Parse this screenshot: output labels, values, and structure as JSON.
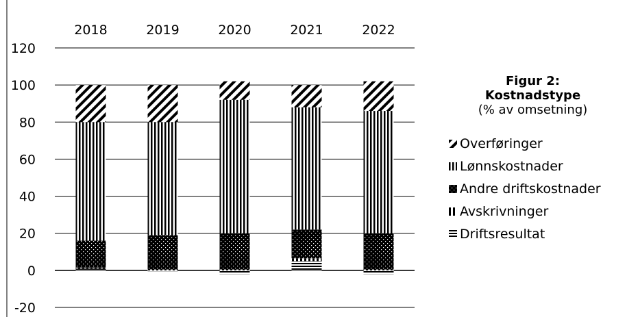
{
  "chart_data": {
    "type": "bar",
    "stacked": true,
    "title": "Figur 2:",
    "subtitle_bold": "Kostnadstype",
    "subtitle": "(% av omsetning)",
    "categories": [
      "2018",
      "2019",
      "2020",
      "2021",
      "2022"
    ],
    "series": [
      {
        "name": "Driftsresultat",
        "values": [
          1,
          -0.5,
          -2,
          5,
          -2
        ],
        "pattern": "hlines"
      },
      {
        "name": "Avskrivninger",
        "values": [
          0.5,
          0.5,
          0.5,
          1.5,
          0.5
        ],
        "pattern": "vlines-wide"
      },
      {
        "name": "Andre driftskostnader",
        "values": [
          14.5,
          18.5,
          19.5,
          15.5,
          19.5
        ],
        "pattern": "dots"
      },
      {
        "name": "Lønnskostnader",
        "values": [
          64,
          61,
          72,
          66,
          66
        ],
        "pattern": "vlines"
      },
      {
        "name": "Overføringer",
        "values": [
          20,
          20,
          10,
          12,
          16
        ],
        "pattern": "diag"
      }
    ],
    "ylim": [
      -20,
      120
    ],
    "yticks": [
      -20,
      0,
      20,
      40,
      60,
      80,
      100,
      120
    ],
    "xlabel": "",
    "ylabel": "",
    "grid": true,
    "legend_position": "right",
    "category_axis_position": "top"
  },
  "colors": {
    "ink": "#000000",
    "background": "#ffffff"
  }
}
